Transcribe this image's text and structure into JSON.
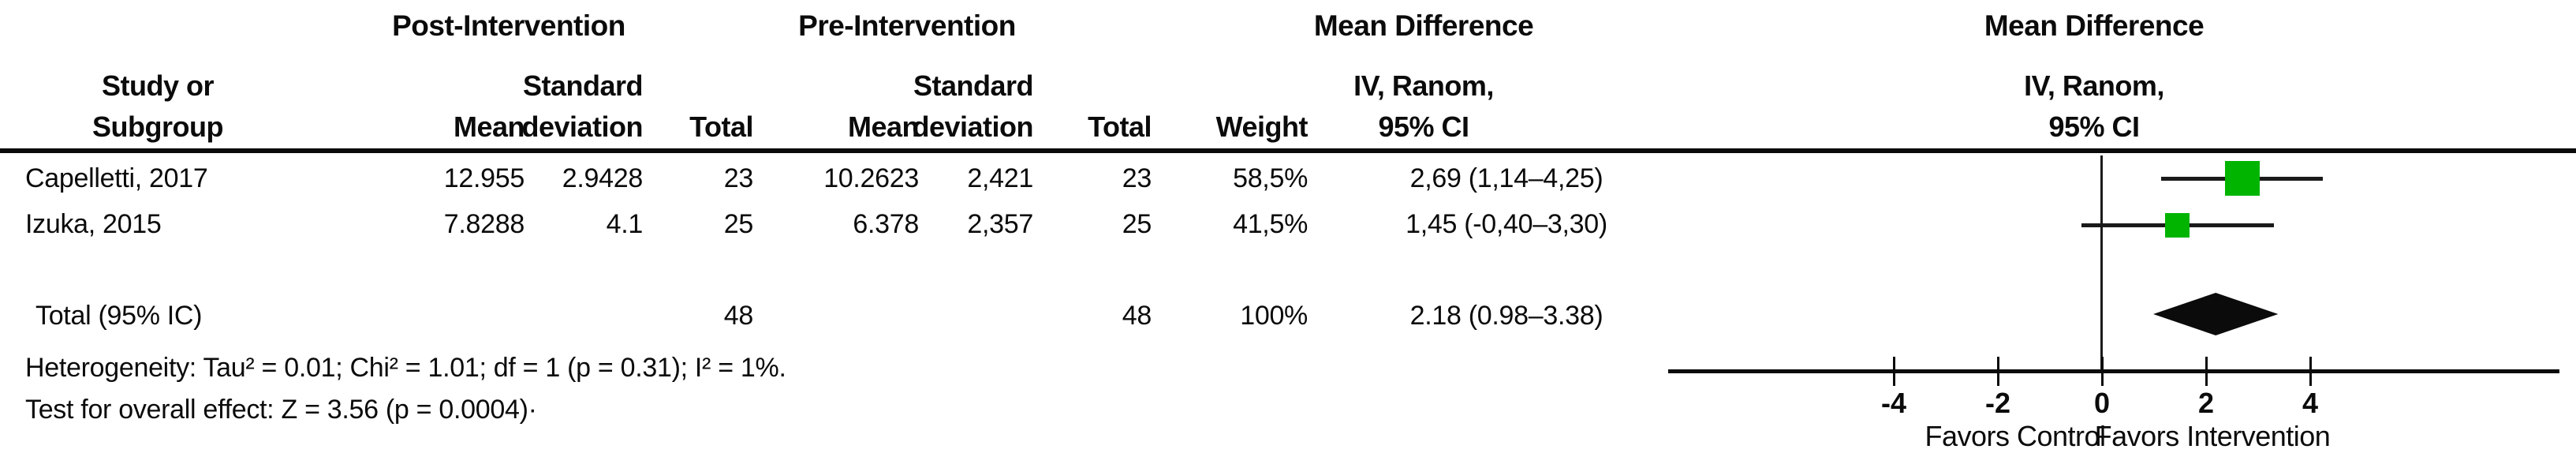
{
  "table": {
    "group_headers": {
      "post": "Post-Intervention",
      "pre": "Pre-Intervention",
      "md_table": "Mean Difference",
      "md_plot": "Mean Difference"
    },
    "col_headers": {
      "study_line1": "Study or",
      "study_line2": "Subgroup",
      "post_mean": "Mean",
      "post_sd_line1": "Standard",
      "post_sd_line2": "deviation",
      "post_total": "Total",
      "pre_mean": "Mean",
      "pre_sd_line1": "Standard",
      "pre_sd_line2": "deviation",
      "pre_total": "Total",
      "weight": "Weight",
      "iv_table_line1": "IV, Ranom,",
      "iv_table_line2": "95% CI",
      "iv_plot_line1": "IV, Ranom,",
      "iv_plot_line2": "95% CI"
    },
    "rows": [
      {
        "study": "Capelletti, 2017",
        "post_mean": "12.955",
        "post_sd": "2.9428",
        "post_total": "23",
        "pre_mean": "10.2623",
        "pre_sd": "2,421",
        "pre_total": "23",
        "weight": "58,5%",
        "ci": "2,69 (1,14–4,25)"
      },
      {
        "study": "Izuka, 2015",
        "post_mean": "7.8288",
        "post_sd": "4.1",
        "post_total": "25",
        "pre_mean": "6.378",
        "pre_sd": "2,357",
        "pre_total": "25",
        "weight": "41,5%",
        "ci": "1,45 (-0,40–3,30)"
      }
    ],
    "total_row": {
      "label": "Total (95% IC)",
      "post_total": "48",
      "pre_total": "48",
      "weight": "100%",
      "ci": "2.18 (0.98–3.38)"
    },
    "footnotes": {
      "heterogeneity": "Heterogeneity: Tau² = 0.01; Chi² = 1.01; df = 1 (p = 0.31); I² = 1%.",
      "overall_effect": "Test for overall effect: Z = 3.56 (p = 0.0004)·"
    }
  },
  "chart_data": {
    "type": "forest",
    "title": "Mean Difference — IV, Ranom, 95% CI",
    "axis": {
      "ticks": [
        -4,
        -2,
        0,
        2,
        4
      ],
      "zero_line": 0,
      "xlim_drawn": [
        -8.3,
        8.8
      ]
    },
    "studies": [
      {
        "name": "Capelletti, 2017",
        "md": 2.69,
        "ci_low": 1.14,
        "ci_high": 4.25,
        "weight_pct": 58.5
      },
      {
        "name": "Izuka, 2015",
        "md": 1.45,
        "ci_low": -0.4,
        "ci_high": 3.3,
        "weight_pct": 41.5
      }
    ],
    "total": {
      "name": "Total (95% IC)",
      "md": 2.18,
      "ci_low": 0.98,
      "ci_high": 3.38,
      "weight_pct": 100
    },
    "xlabels": {
      "left": "Favors Control",
      "right": "Favors Intervention"
    },
    "marker_color": "#00b400",
    "diamond_color": "#0b0b0b"
  }
}
